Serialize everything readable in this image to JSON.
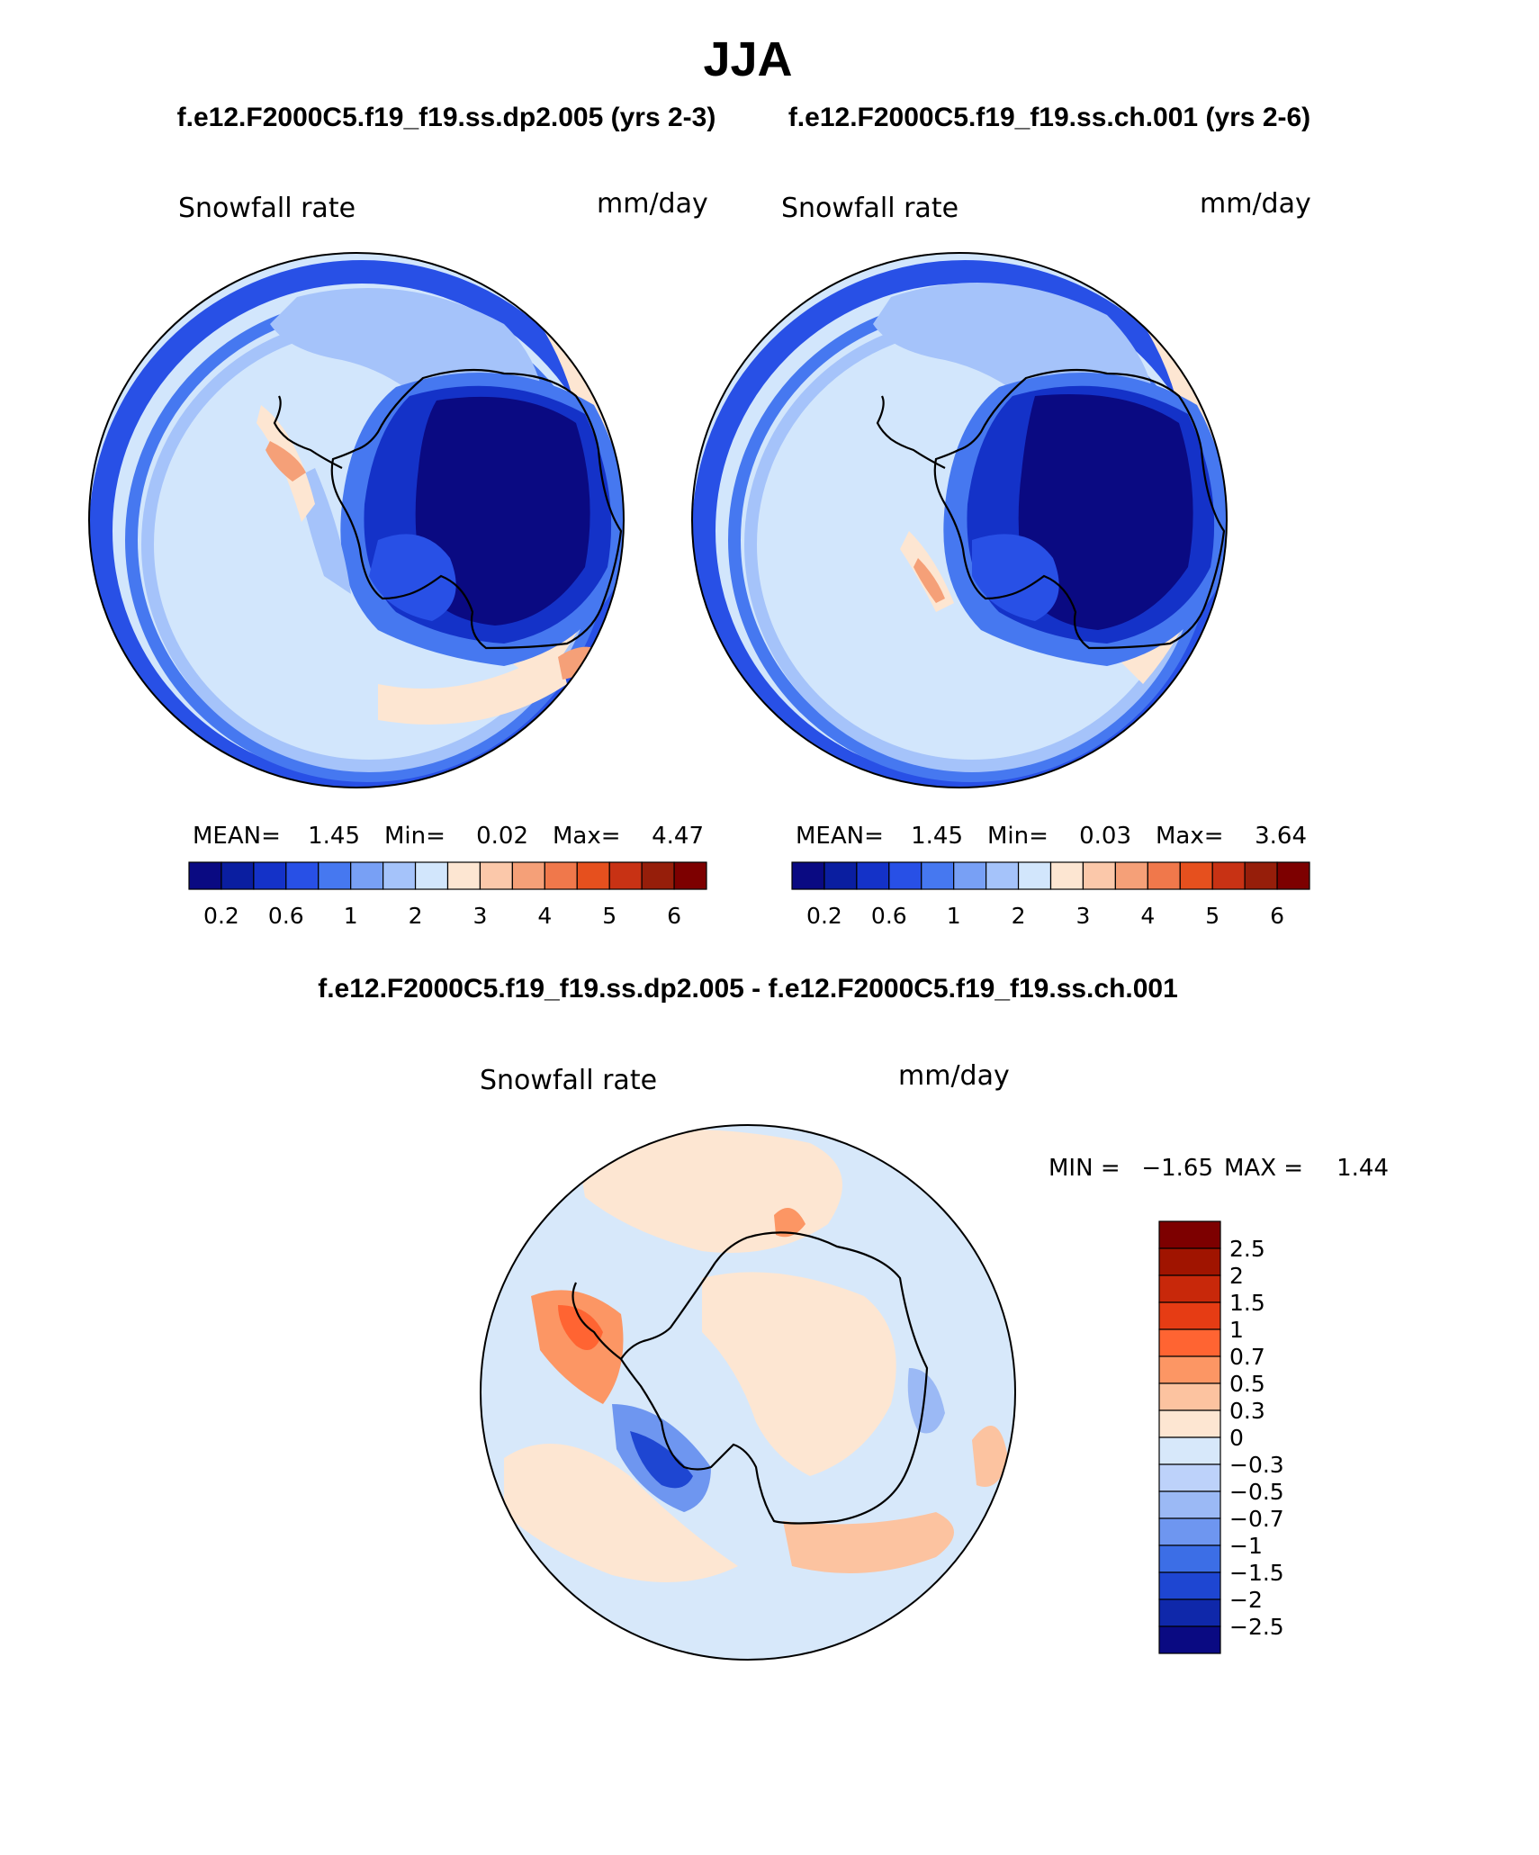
{
  "figure": {
    "season": "JJA",
    "case_a_title": "f.e12.F2000C5.f19_f19.ss.dp2.005 (yrs 2-3)",
    "case_b_title": "f.e12.F2000C5.f19_f19.ss.ch.001 (yrs 2-6)",
    "diff_title": "f.e12.F2000C5.f19_f19.ss.dp2.005 - f.e12.F2000C5.f19_f19.ss.ch.001"
  },
  "chart_data": [
    {
      "type": "polar-contour-map",
      "id": "panel-case-a",
      "variable": "Snowfall rate",
      "units": "mm/day",
      "stats": {
        "mean_label": "MEAN=",
        "mean": "1.45",
        "min_label": "Min=",
        "min": "0.02",
        "max_label": "Max=",
        "max": "4.47"
      },
      "levels": [
        0.2,
        0.4,
        0.6,
        0.8,
        1,
        1.5,
        2,
        2.5,
        3,
        3.5,
        4,
        4.5,
        5,
        5.5,
        6
      ],
      "colorbar_tick_labels": [
        "0.2",
        "0.6",
        "1",
        "2",
        "3",
        "4",
        "5",
        "6"
      ],
      "colors": [
        "#0a0a82",
        "#0a1ea0",
        "#1432c8",
        "#2850e6",
        "#4678f0",
        "#78a0f5",
        "#a5c3fa",
        "#d2e6fc",
        "#fde6d2",
        "#fbc8aa",
        "#f5a078",
        "#f0784b",
        "#e6501e",
        "#c83214",
        "#961e0a",
        "#7d0000"
      ],
      "regions": {
        "antarctic_interior": "<0.2",
        "outer_ring": "0.4-1",
        "southern_ocean": "1.5-3",
        "peninsula_west": "3-4",
        "indian_ocean_sector": "3-4"
      }
    },
    {
      "type": "polar-contour-map",
      "id": "panel-case-b",
      "variable": "Snowfall rate",
      "units": "mm/day",
      "stats": {
        "mean_label": "MEAN=",
        "mean": "1.45",
        "min_label": "Min=",
        "min": "0.03",
        "max_label": "Max=",
        "max": "3.64"
      },
      "levels": [
        0.2,
        0.4,
        0.6,
        0.8,
        1,
        1.5,
        2,
        2.5,
        3,
        3.5,
        4,
        4.5,
        5,
        5.5,
        6
      ],
      "colorbar_tick_labels": [
        "0.2",
        "0.6",
        "1",
        "2",
        "3",
        "4",
        "5",
        "6"
      ],
      "colors": [
        "#0a0a82",
        "#0a1ea0",
        "#1432c8",
        "#2850e6",
        "#4678f0",
        "#78a0f5",
        "#a5c3fa",
        "#d2e6fc",
        "#fde6d2",
        "#fbc8aa",
        "#f5a078",
        "#f0784b",
        "#e6501e",
        "#c83214",
        "#961e0a",
        "#7d0000"
      ],
      "regions": {
        "antarctic_interior": "<0.2",
        "outer_ring": "0.4-1",
        "southern_ocean": "1.5-3",
        "peninsula_west": "3-4"
      }
    },
    {
      "type": "polar-contour-map",
      "id": "panel-difference",
      "variable": "Snowfall rate",
      "units": "mm/day",
      "stats": {
        "min_label": "MIN =",
        "min": "−1.65",
        "max_label": "MAX =",
        "max": "1.44"
      },
      "levels": [
        -2.5,
        -2,
        -1.5,
        -1,
        -0.7,
        -0.5,
        -0.3,
        0,
        0.3,
        0.5,
        0.7,
        1,
        1.5,
        2,
        2.5
      ],
      "colorbar_tick_labels": [
        "2.5",
        "2",
        "1.5",
        "1",
        "0.7",
        "0.5",
        "0.3",
        "0",
        "−0.3",
        "−0.5",
        "−0.7",
        "−1",
        "−1.5",
        "−2",
        "−2.5"
      ],
      "colors": [
        "#7d0000",
        "#a01400",
        "#c8280a",
        "#e63c14",
        "#ff6432",
        "#fc9664",
        "#fcc3a0",
        "#fde6d2",
        "#d7e8fa",
        "#bdd2fa",
        "#9bb9f5",
        "#6e96f0",
        "#3c6ee6",
        "#1e46d2",
        "#0f28aa",
        "#0a0a82"
      ],
      "regions": {
        "background": "-0.3-0",
        "peninsula_west": "1-1.5",
        "ross_sea": "-1.5--1",
        "east_antarctic_coast": "0.3-0.7"
      }
    }
  ]
}
